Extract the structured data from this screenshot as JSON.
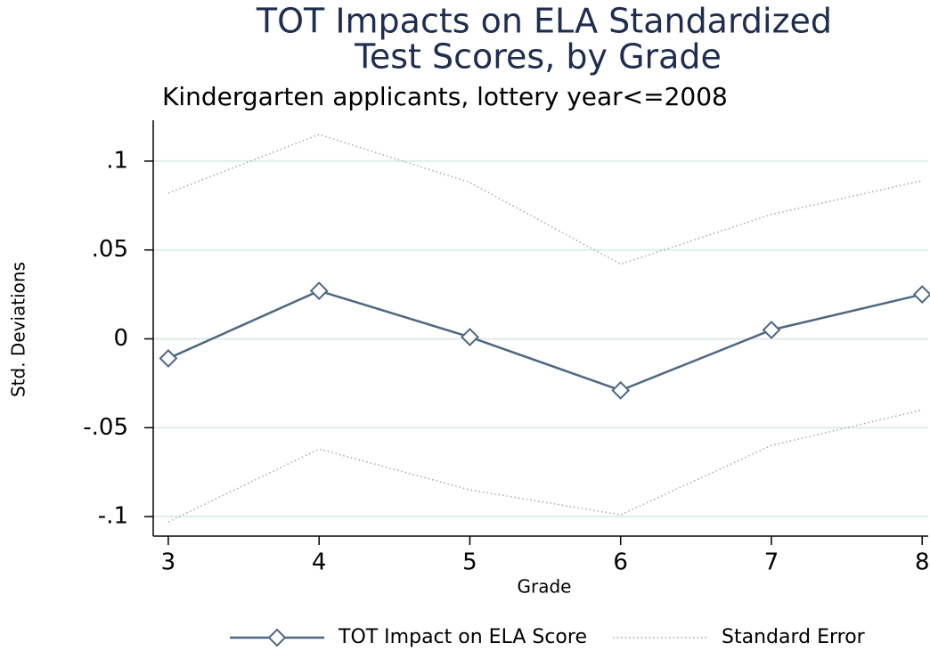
{
  "chart_data": {
    "type": "line",
    "title": [
      "TOT Impacts on ELA Standardized",
      "Test Scores, by Grade"
    ],
    "subtitle": "Kindergarten applicants, lottery year<=2008",
    "x_label": "Grade",
    "y_label": "Std. Deviations",
    "x": [
      3,
      4,
      5,
      6,
      7,
      8
    ],
    "series": [
      {
        "name": "TOT Impact on ELA Score",
        "color": "#4e6882",
        "values": [
          -0.011,
          0.027,
          0.001,
          -0.029,
          0.005,
          0.025
        ]
      },
      {
        "name": "Standard Error",
        "color": "#a8a8a8",
        "values": [
          0.082,
          0.115,
          0.088,
          0.042,
          0.07,
          0.089
        ],
        "lower_values": [
          -0.103,
          -0.062,
          -0.085,
          -0.099,
          -0.06,
          -0.04
        ]
      }
    ],
    "xlim": [
      2.9,
      8.04
    ],
    "xticks": [
      3,
      4,
      5,
      6,
      7,
      8
    ],
    "ylim": [
      -0.111,
      0.123
    ],
    "yticks": [
      {
        "value": -0.1,
        "label": "-.1"
      },
      {
        "value": -0.05,
        "label": "-.05"
      },
      0,
      {
        "value": 0.05,
        "label": ".05"
      },
      {
        "value": 0.1,
        "label": ".1"
      }
    ],
    "grid": true,
    "legend": "bottom"
  }
}
